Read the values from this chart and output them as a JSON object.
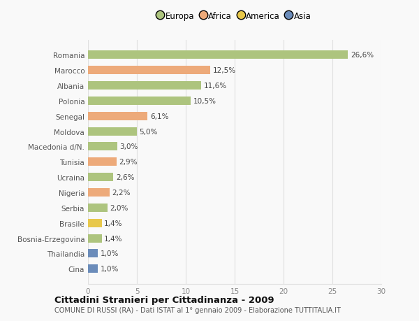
{
  "categories": [
    "Cina",
    "Thailandia",
    "Bosnia-Erzegovina",
    "Brasile",
    "Serbia",
    "Nigeria",
    "Ucraina",
    "Tunisia",
    "Macedonia d/N.",
    "Moldova",
    "Senegal",
    "Polonia",
    "Albania",
    "Marocco",
    "Romania"
  ],
  "values": [
    1.0,
    1.0,
    1.4,
    1.4,
    2.0,
    2.2,
    2.6,
    2.9,
    3.0,
    5.0,
    6.1,
    10.5,
    11.6,
    12.5,
    26.6
  ],
  "labels": [
    "1,0%",
    "1,0%",
    "1,4%",
    "1,4%",
    "2,0%",
    "2,2%",
    "2,6%",
    "2,9%",
    "3,0%",
    "5,0%",
    "6,1%",
    "10,5%",
    "11,6%",
    "12,5%",
    "26,6%"
  ],
  "colors": [
    "#6b8cba",
    "#6b8cba",
    "#adc47e",
    "#e8c84a",
    "#adc47e",
    "#edaa7a",
    "#adc47e",
    "#edaa7a",
    "#adc47e",
    "#adc47e",
    "#edaa7a",
    "#adc47e",
    "#adc47e",
    "#edaa7a",
    "#adc47e"
  ],
  "legend": [
    {
      "label": "Europa",
      "color": "#adc47e"
    },
    {
      "label": "Africa",
      "color": "#edaa7a"
    },
    {
      "label": "America",
      "color": "#e8c84a"
    },
    {
      "label": "Asia",
      "color": "#6b8cba"
    }
  ],
  "xlim": [
    0,
    30
  ],
  "xticks": [
    0,
    5,
    10,
    15,
    20,
    25,
    30
  ],
  "title": "Cittadini Stranieri per Cittadinanza - 2009",
  "subtitle": "COMUNE DI RUSSI (RA) - Dati ISTAT al 1° gennaio 2009 - Elaborazione TUTTITALIA.IT",
  "background_color": "#f9f9f9",
  "grid_color": "#e0e0e0",
  "bar_height": 0.55
}
